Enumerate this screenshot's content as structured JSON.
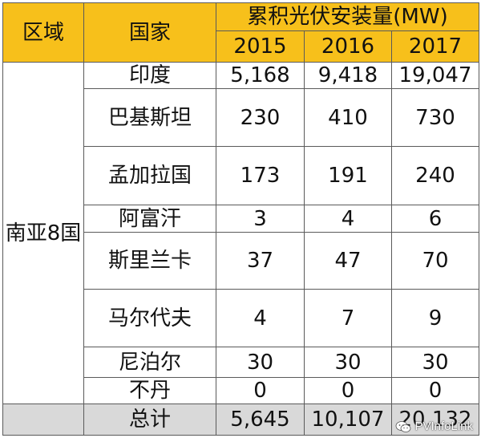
{
  "header": {
    "region_label": "区域",
    "country_label": "国家",
    "group_title": "累积光伏安装量(MW)",
    "years": [
      "2015",
      "2016",
      "2017"
    ]
  },
  "region_name": "南亚8国",
  "rows": [
    {
      "country": "印度",
      "values": [
        "5,168",
        "9,418",
        "19,047"
      ]
    },
    {
      "country": "巴基斯坦",
      "values": [
        "230",
        "410",
        "730"
      ]
    },
    {
      "country": "孟加拉国",
      "values": [
        "173",
        "191",
        "240"
      ]
    },
    {
      "country": "阿富汗",
      "values": [
        "3",
        "4",
        "6"
      ]
    },
    {
      "country": "斯里兰卡",
      "values": [
        "37",
        "47",
        "70"
      ]
    },
    {
      "country": "马尔代夫",
      "values": [
        "4",
        "7",
        "9"
      ]
    },
    {
      "country": "尼泊尔",
      "values": [
        "30",
        "30",
        "30"
      ]
    },
    {
      "country": "不丹",
      "values": [
        "0",
        "0",
        "0"
      ]
    }
  ],
  "total": {
    "label": "总计",
    "values": [
      "5,645",
      "10,107",
      "20,132"
    ]
  },
  "watermark": {
    "text": "PVInfoLink",
    "icon": "wechat-icon"
  },
  "colors": {
    "header_bg": "#f7c01b",
    "total_bg": "#d9d9d9",
    "border": "#5a5a5a"
  }
}
